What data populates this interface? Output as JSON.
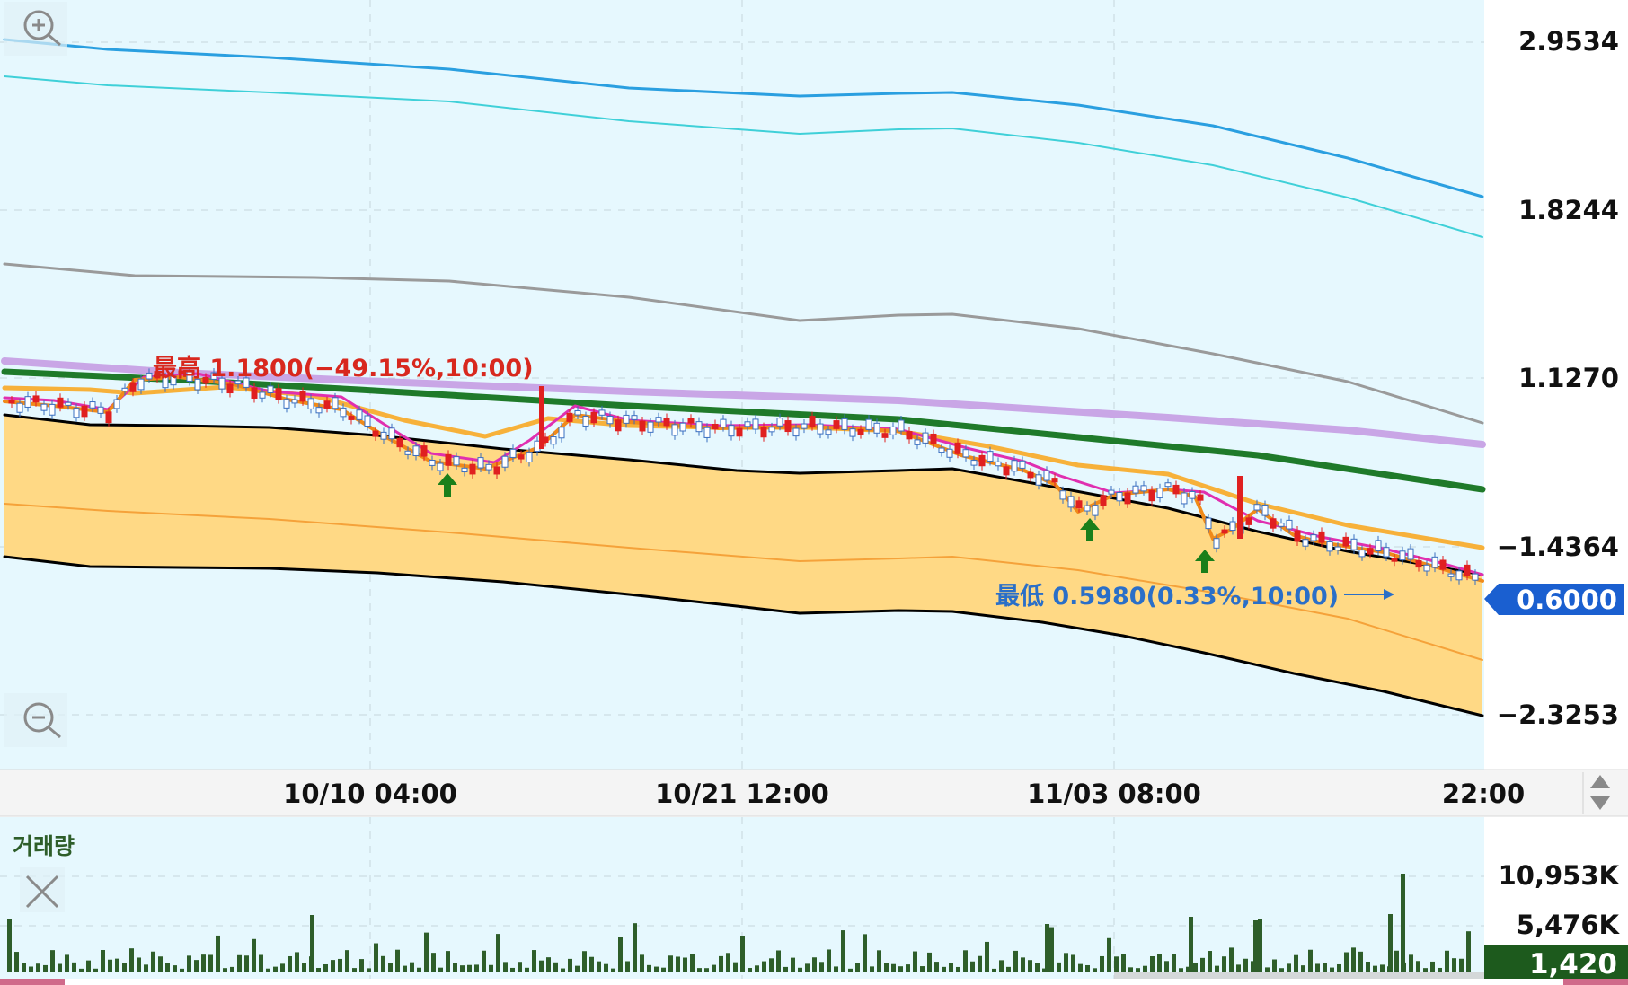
{
  "price_panel": {
    "y_ticks": [
      "2.9534",
      "1.8244",
      "1.1270",
      "−1.4364",
      "−2.3253"
    ],
    "x_ticks": [
      "10/10 04:00",
      "10/21 12:00",
      "11/03 08:00",
      "22:00"
    ],
    "current_price": "0.6000",
    "high_annotation": "最高 1.1800(−49.15%,10:00)",
    "low_annotation": "最低 0.5980(0.33%,10:00)",
    "colors": {
      "background": "#e6f8fe",
      "band_fill": "#ffd985",
      "band_edge": "#000000",
      "band_mid": "#f5a23a",
      "ma_blue": "#2a9fe0",
      "ma_cyan": "#3fd0d8",
      "ma_gray": "#9a9a9a",
      "ma_purple": "#c9a6e6",
      "ma_green": "#1f7a2a",
      "ma_orange": "#f7b13a",
      "ma_magenta": "#e02fb0",
      "ma_short": "#f08a1a",
      "candle_up": "#e02020",
      "candle_down": "#3a6fc0",
      "high_text": "#d8281e",
      "low_text": "#2a6fc8",
      "price_tag": "#1a5fd0",
      "buy_arrow": "#1a7f1a"
    },
    "icons": [
      "zoom-in-icon",
      "zoom-out-icon",
      "scroll-arrows-icon"
    ]
  },
  "volume_panel": {
    "title": "거래량",
    "y_ticks": [
      "10,953K",
      "5,476K"
    ],
    "current_volume": "1,420",
    "icons": [
      "close-icon"
    ],
    "colors": {
      "bar": "#2e5e2a",
      "tag": "#1d5a1d"
    }
  },
  "chart_data": {
    "type": "line",
    "note_x": "time axis",
    "x_labels": [
      "10/10 04:00",
      "10/21 12:00",
      "11/03 08:00",
      "22:00"
    ],
    "series": [
      {
        "values": [
          2.96,
          2.94,
          2.91,
          2.87,
          2.85,
          2.83,
          2.83,
          2.81,
          2.7,
          2.53,
          2.36
        ]
      },
      {
        "values": [
          2.67,
          2.64,
          2.62,
          2.58,
          2.56,
          2.55,
          2.55,
          2.52,
          2.41,
          2.25,
          2.08
        ]
      },
      {
        "values": [
          1.56,
          1.53,
          1.51,
          1.49,
          1.46,
          1.43,
          1.43,
          1.39,
          1.29,
          1.16,
          1.06
        ]
      },
      {
        "values": [
          1.18,
          1.16,
          1.14,
          1.12,
          1.1,
          1.08,
          1.06,
          1.04,
          1.02,
          0.99,
          0.97
        ]
      },
      {
        "values": [
          1.14,
          1.12,
          1.1,
          1.08,
          1.06,
          1.04,
          1.02,
          0.99,
          0.95,
          0.91,
          0.85
        ]
      }
    ],
    "price_range": {
      "low": 0.598,
      "high": 1.18
    },
    "current": 0.6,
    "volume": {
      "max_label": "10,953K",
      "mid_label": "5,476K",
      "current": 1420
    }
  }
}
